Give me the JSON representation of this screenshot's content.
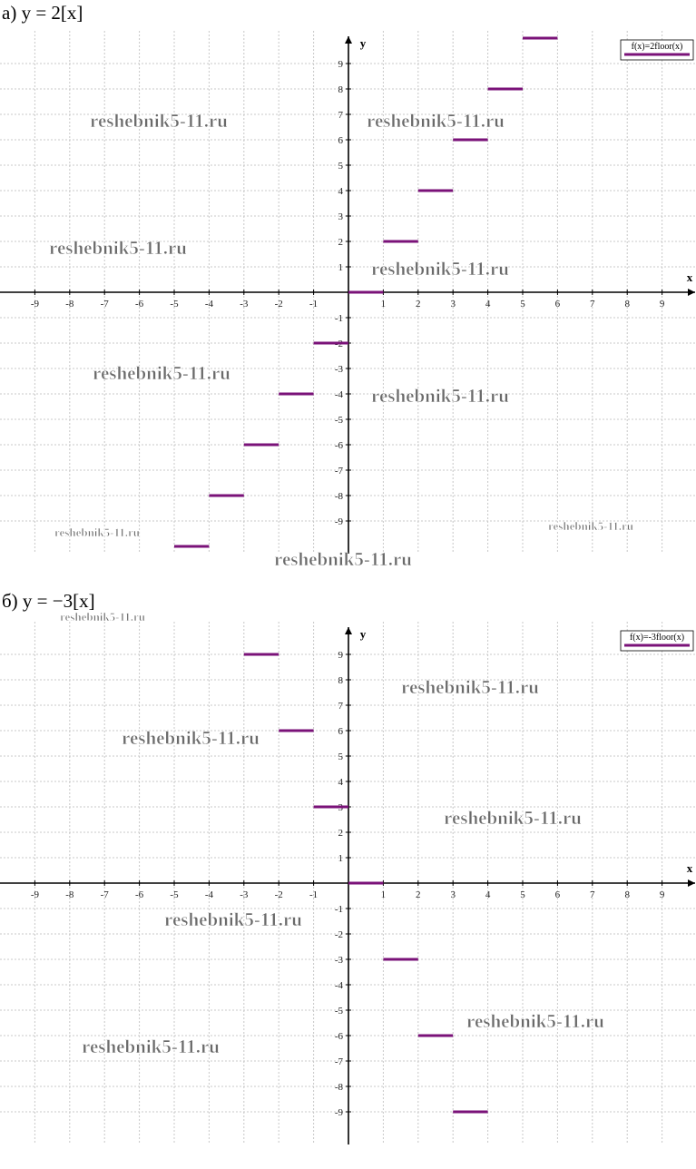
{
  "watermark": "reshebnik5-11.ru",
  "chart_data": [
    {
      "type": "step",
      "title": "а) y = 2[x]",
      "x_label": "x",
      "y_label": "y",
      "xlim": [
        -10,
        10
      ],
      "ylim": [
        -10,
        10
      ],
      "xticks": [
        -9,
        -8,
        -7,
        -6,
        -5,
        -4,
        -3,
        -2,
        -1,
        1,
        2,
        3,
        4,
        5,
        6,
        7,
        8,
        9
      ],
      "yticks": [
        -9,
        -8,
        -7,
        -6,
        -5,
        -4,
        -3,
        -2,
        -1,
        1,
        2,
        3,
        4,
        5,
        6,
        7,
        8,
        9
      ],
      "grid": true,
      "legend": "upper right",
      "series": [
        {
          "name": "f(x)=2floor(x)",
          "color": "#7a1278",
          "x": [
            -5,
            -4,
            -3,
            -2,
            -1,
            0,
            1,
            2,
            3,
            4,
            5
          ],
          "values": [
            -10,
            -8,
            -6,
            -4,
            -2,
            0,
            2,
            4,
            6,
            8,
            10
          ]
        }
      ]
    },
    {
      "type": "step",
      "title": "б) y = −3[x]",
      "x_label": "x",
      "y_label": "y",
      "xlim": [
        -10,
        10
      ],
      "ylim": [
        -10,
        10
      ],
      "xticks": [
        -9,
        -8,
        -7,
        -6,
        -5,
        -4,
        -3,
        -2,
        -1,
        1,
        2,
        3,
        4,
        5,
        6,
        7,
        8,
        9
      ],
      "yticks": [
        -9,
        -8,
        -7,
        -6,
        -5,
        -4,
        -3,
        -2,
        -1,
        1,
        2,
        3,
        4,
        5,
        6,
        7,
        8,
        9
      ],
      "grid": true,
      "legend": "upper right",
      "series": [
        {
          "name": "f(x)=-3floor(x)",
          "color": "#7a1278",
          "x": [
            -3,
            -2,
            -1,
            0,
            1,
            2,
            3
          ],
          "values": [
            9,
            6,
            3,
            0,
            -3,
            -6,
            -9
          ]
        }
      ]
    }
  ]
}
